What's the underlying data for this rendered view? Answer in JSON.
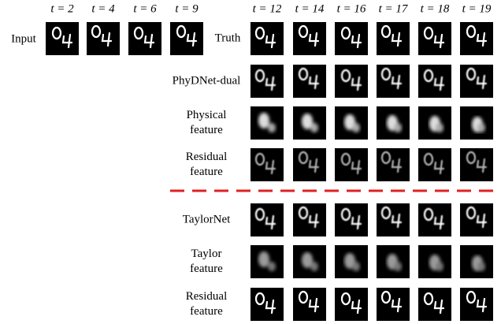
{
  "input": {
    "label": "Input",
    "times": [
      "t = 2",
      "t = 4",
      "t = 6",
      "t = 9"
    ]
  },
  "output_times": [
    "t = 12",
    "t = 14",
    "t = 16",
    "t = 17",
    "t = 18",
    "t = 19"
  ],
  "rows": [
    {
      "label": [
        "Truth"
      ]
    },
    {
      "label": [
        "PhyDNet-dual"
      ]
    },
    {
      "label": [
        "Physical",
        "feature"
      ]
    },
    {
      "label": [
        "Residual",
        "feature"
      ]
    },
    {
      "label": [
        "TaylorNet"
      ]
    },
    {
      "label": [
        "Taylor",
        "feature"
      ]
    },
    {
      "label": [
        "Residual",
        "feature"
      ]
    }
  ]
}
